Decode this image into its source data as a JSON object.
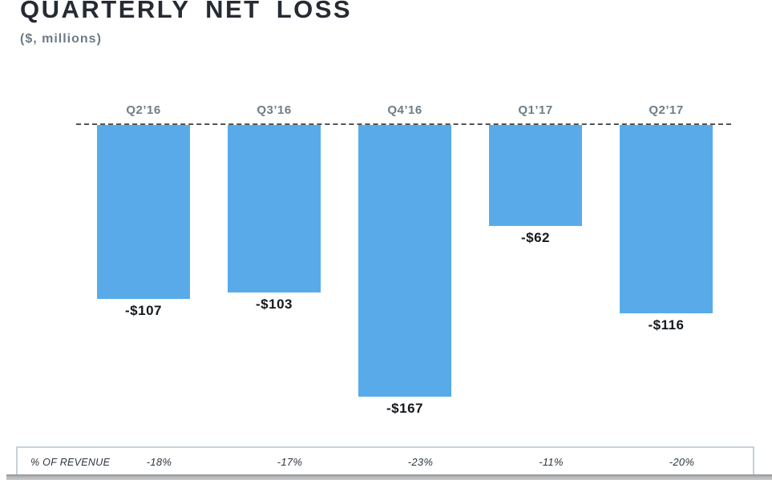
{
  "title": "QUARTERLY NET LOSS",
  "subtitle": "($, millions)",
  "chart_data": {
    "type": "bar",
    "categories": [
      "Q2’16",
      "Q3’16",
      "Q4’16",
      "Q1’17",
      "Q2’17"
    ],
    "values": [
      -107,
      -103,
      -167,
      -62,
      -116
    ],
    "value_labels": [
      "-$107",
      "-$103",
      "-$167",
      "-$62",
      "-$116"
    ],
    "title": "QUARTERLY NET LOSS",
    "xlabel": "",
    "ylabel": "($, millions)",
    "ylim": [
      -175,
      0
    ],
    "grid": false,
    "legend": false,
    "baseline": 0,
    "baseline_style": "dashed",
    "bar_color": "#58ABE8",
    "title_color": "#262B33",
    "category_label_color": "#6F7D89",
    "value_label_color": "#15181C",
    "pct_of_revenue": [
      "-18%",
      "-17%",
      "-23%",
      "-11%",
      "-20%"
    ]
  },
  "table": {
    "row_label": "% OF REVENUE",
    "values": [
      "-18%",
      "-17%",
      "-23%",
      "-11%",
      "-20%"
    ],
    "border_color": "#C6D1D9"
  }
}
